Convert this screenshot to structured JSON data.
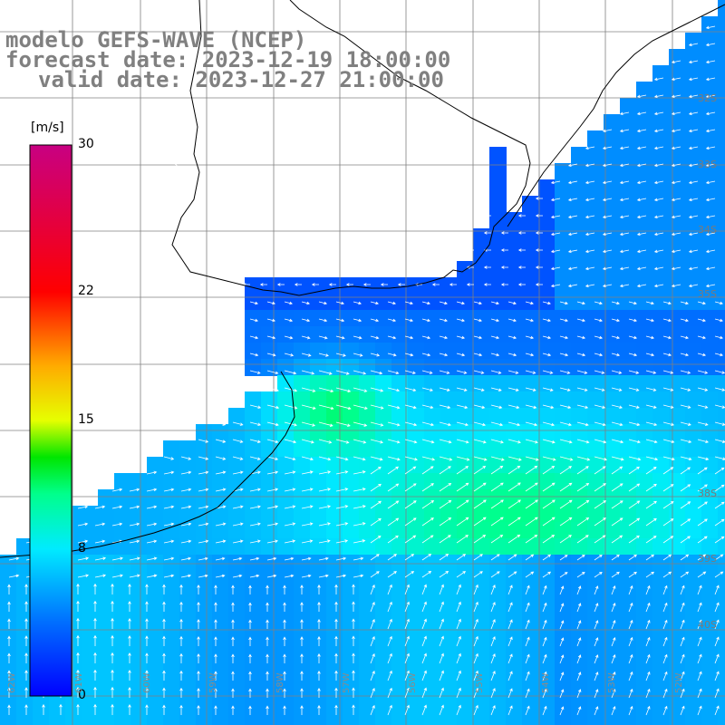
{
  "title": {
    "line1": "modelo GEFS-WAVE (NCEP)",
    "line2": "forecast date: 2023-12-19 18:00:00",
    "line3": "valid date: 2023-12-27 21:00:00"
  },
  "colorbar": {
    "units": "[m/s]",
    "ticks": [
      {
        "value": 30,
        "label": "30"
      },
      {
        "value": 22,
        "label": "22"
      },
      {
        "value": 15,
        "label": "15"
      },
      {
        "value": 8,
        "label": "8"
      },
      {
        "value": 0,
        "label": "0"
      }
    ],
    "range": [
      0,
      30
    ]
  },
  "lat_labels": [
    {
      "label": "32S"
    },
    {
      "label": "33S"
    },
    {
      "label": "34S"
    },
    {
      "label": "35S"
    },
    {
      "label": "38S"
    },
    {
      "label": "39S"
    },
    {
      "label": "40S"
    }
  ],
  "lon_labels": [
    {
      "label": "62W"
    },
    {
      "label": "61W"
    },
    {
      "label": "60W"
    },
    {
      "label": "59W"
    },
    {
      "label": "58W"
    },
    {
      "label": "57W"
    },
    {
      "label": "56W"
    },
    {
      "label": "55W"
    },
    {
      "label": "54W"
    },
    {
      "label": "53W"
    },
    {
      "label": "52W"
    }
  ],
  "colors": {
    "land": "#ffffff",
    "coast": "#000000",
    "grid": "#808080",
    "arrow": "#ffffff",
    "title": "#808080"
  },
  "legend_placement": "left",
  "grid": true
}
